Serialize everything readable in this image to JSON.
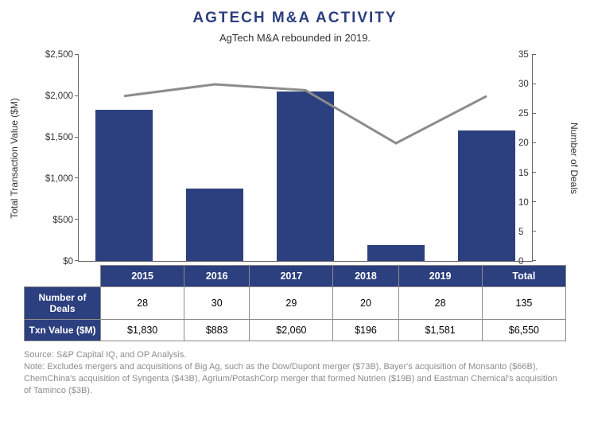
{
  "title": {
    "text": "AGTECH M&A ACTIVITY",
    "color": "#2c3f7e",
    "fontsize": 19
  },
  "subtitle": {
    "text": "AgTech M&A rebounded in 2019.",
    "color": "#333333",
    "fontsize": 13
  },
  "chart": {
    "categories": [
      "2015",
      "2016",
      "2017",
      "2018",
      "2019"
    ],
    "bar_values": [
      1830,
      883,
      2060,
      196,
      1581
    ],
    "line_values": [
      28,
      30,
      29,
      20,
      28
    ],
    "bar_color": "#2c3f7e",
    "line_color": "#8c8c8c",
    "line_width": 3,
    "left_axis": {
      "label": "Total Transaction Value ($M)",
      "min": 0,
      "max": 2500,
      "step": 500,
      "tick_labels": [
        "$0",
        "$500",
        "$1,000",
        "$1,500",
        "$2,000",
        "$2,500"
      ]
    },
    "right_axis": {
      "label": "Number of Deals",
      "min": 0,
      "max": 35,
      "step": 5,
      "tick_labels": [
        "0",
        "5",
        "10",
        "15",
        "20",
        "25",
        "30",
        "35"
      ]
    },
    "background_color": "#ffffff"
  },
  "table": {
    "columns": [
      "2015",
      "2016",
      "2017",
      "2018",
      "2019",
      "Total"
    ],
    "rows": [
      {
        "label": "Number of Deals",
        "cells": [
          "28",
          "30",
          "29",
          "20",
          "28",
          "135"
        ]
      },
      {
        "label": "Txn Value ($M)",
        "cells": [
          "$1,830",
          "$883",
          "$2,060",
          "$196",
          "$1,581",
          "$6,550"
        ]
      }
    ],
    "header_bg": "#2c3f7e",
    "header_color": "#ffffff",
    "border_color": "#8c8c8c"
  },
  "footnotes": {
    "source": "Source: S&P Capital IQ, and OP Analysis.",
    "note": "Note: Excludes mergers and acquisitions of Big Ag, such as the Dow/Dupont merger ($73B), Bayer's acquisition of Monsanto ($66B), ChemChina's acquisition of Syngenta ($43B), Agrium/PotashCorp merger that formed Nutrien ($19B) and Eastman Chemical's acquisition of Taminco ($3B).",
    "color": "#8c8c8c",
    "fontsize": 11
  }
}
